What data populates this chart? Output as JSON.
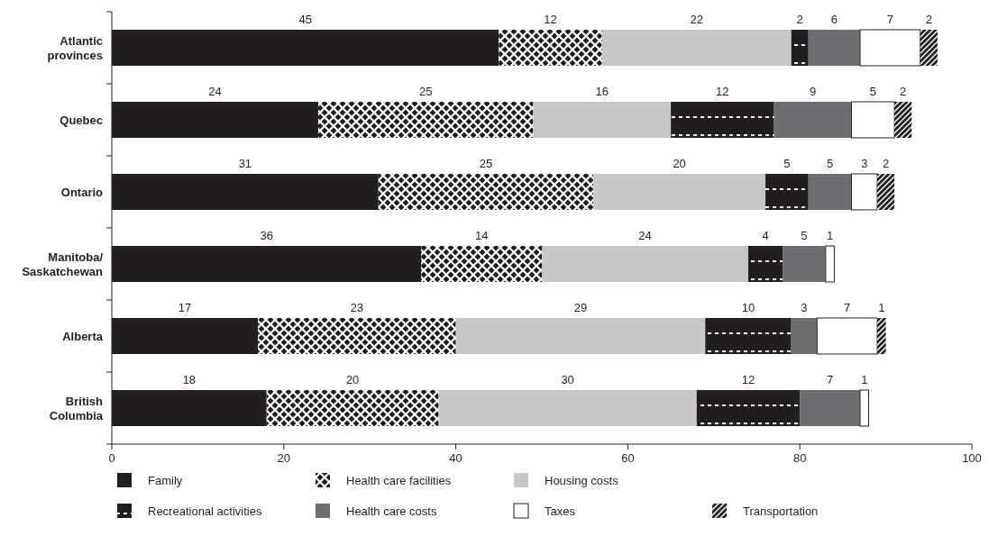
{
  "chart_data": {
    "type": "bar",
    "orientation": "horizontal",
    "stacked": true,
    "data_labels": true,
    "legend": "bottom",
    "categories": [
      "Atlantic provinces",
      "Quebec",
      "Ontario",
      "Manitoba/ Saskatchewan",
      "Alberta",
      "British Columbia"
    ],
    "xlim": [
      0,
      100
    ],
    "xticks": [
      0,
      20,
      40,
      60,
      80,
      100
    ],
    "series": [
      {
        "name": "Family",
        "color": "#231f20",
        "values": [
          45,
          24,
          31,
          36,
          17,
          18
        ]
      },
      {
        "name": "Health care facilities",
        "color": "#231f20",
        "values": [
          12,
          25,
          25,
          14,
          23,
          20
        ]
      },
      {
        "name": "Housing costs",
        "color": "#c8c8c8",
        "values": [
          22,
          16,
          20,
          24,
          29,
          30
        ]
      },
      {
        "name": "Recreational activities",
        "color": "#231f20",
        "values": [
          2,
          12,
          5,
          4,
          10,
          12
        ]
      },
      {
        "name": "Health care costs",
        "color": "#6d6e71",
        "values": [
          6,
          9,
          5,
          5,
          3,
          7
        ]
      },
      {
        "name": "Taxes",
        "color": "#ffffff",
        "values": [
          7,
          5,
          3,
          1,
          7,
          1
        ]
      },
      {
        "name": "Transportation",
        "color": "#231f20",
        "values": [
          2,
          2,
          2,
          null,
          1,
          null
        ]
      }
    ]
  }
}
